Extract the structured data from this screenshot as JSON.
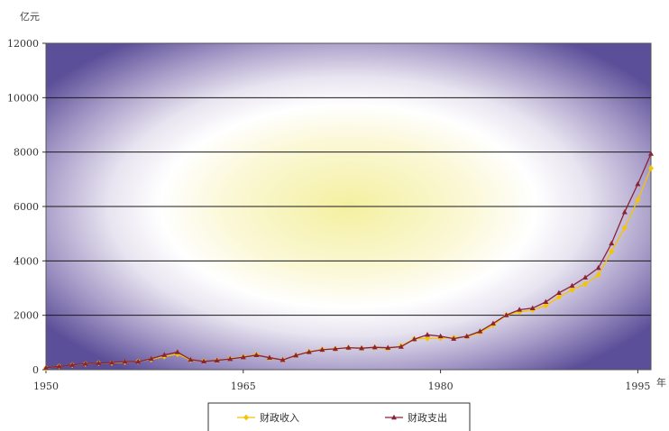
{
  "chart_data": {
    "type": "line",
    "title": "",
    "ylabel": "亿元",
    "xlabel": "年",
    "xlim": [
      1950,
      1996
    ],
    "ylim": [
      0,
      12000
    ],
    "x_ticks": [
      1950,
      1965,
      1980,
      1995
    ],
    "y_ticks": [
      0,
      2000,
      4000,
      6000,
      8000,
      10000,
      12000
    ],
    "grid": true,
    "legend_position": "bottom",
    "x": [
      1950,
      1951,
      1952,
      1953,
      1954,
      1955,
      1956,
      1957,
      1958,
      1959,
      1960,
      1961,
      1962,
      1963,
      1964,
      1965,
      1966,
      1967,
      1968,
      1969,
      1970,
      1971,
      1972,
      1973,
      1974,
      1975,
      1976,
      1977,
      1978,
      1979,
      1980,
      1981,
      1982,
      1983,
      1984,
      1985,
      1986,
      1987,
      1988,
      1989,
      1990,
      1991,
      1992,
      1993,
      1994,
      1995,
      1996
    ],
    "series": [
      {
        "name": "财政收入",
        "color": "#f5c400",
        "marker": "diamond",
        "values": [
          62,
          125,
          174,
          213,
          245,
          250,
          280,
          303,
          379,
          487,
          572,
          356,
          313,
          342,
          400,
          473,
          558,
          419,
          361,
          526,
          662,
          744,
          767,
          809,
          783,
          815,
          776,
          874,
          1132,
          1146,
          1160,
          1176,
          1212,
          1367,
          1643,
          2005,
          2122,
          2199,
          2357,
          2665,
          2937,
          3149,
          3483,
          4349,
          5218,
          6242,
          7408
        ]
      },
      {
        "name": "财政支出",
        "color": "#8b2335",
        "marker": "triangle",
        "values": [
          68,
          122,
          176,
          220,
          244,
          262,
          298,
          296,
          400,
          543,
          644,
          367,
          305,
          340,
          394,
          460,
          537,
          440,
          357,
          526,
          649,
          732,
          766,
          809,
          790,
          821,
          806,
          844,
          1122,
          1282,
          1229,
          1139,
          1230,
          1410,
          1701,
          2004,
          2205,
          2262,
          2491,
          2824,
          3084,
          3387,
          3742,
          4642,
          5793,
          6824,
          7938
        ]
      }
    ]
  }
}
